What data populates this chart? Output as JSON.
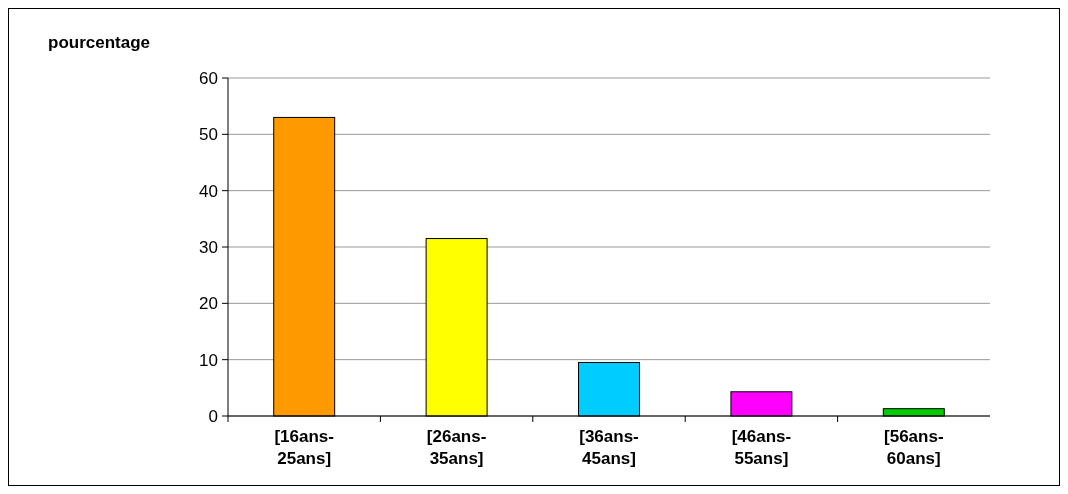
{
  "chart_data": {
    "type": "bar",
    "ylabel": "pourcentage",
    "categories": [
      "[16ans-25ans]",
      "[26ans-35ans]",
      "[36ans-45ans]",
      "[46ans-55ans]",
      "[56ans-60ans]"
    ],
    "values": [
      53,
      31.5,
      9.5,
      4.3,
      1.3
    ],
    "colors": [
      "#ff9900",
      "#ffff00",
      "#00ccff",
      "#ff00ff",
      "#00cc00"
    ],
    "ylim": [
      0,
      60
    ],
    "yticks": [
      0,
      10,
      20,
      30,
      40,
      50,
      60
    ],
    "grid": "y"
  }
}
